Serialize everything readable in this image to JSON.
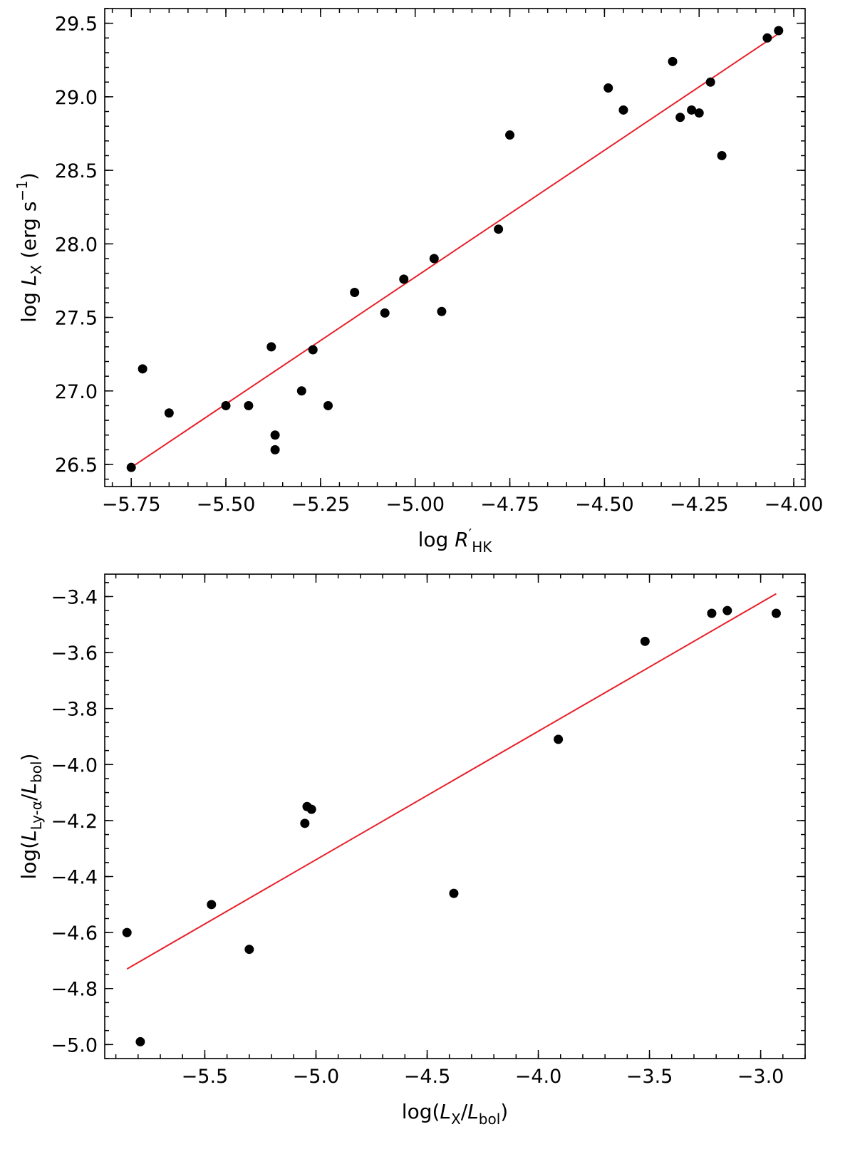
{
  "chart_data": [
    {
      "type": "scatter",
      "xlim": [
        -5.82,
        -3.97
      ],
      "ylim": [
        26.35,
        29.6
      ],
      "x_ticks": [
        -5.75,
        -5.5,
        -5.25,
        -5.0,
        -4.75,
        -4.5,
        -4.25,
        -4.0
      ],
      "x_tick_labels": [
        "−5.75",
        "−5.50",
        "−5.25",
        "−5.00",
        "−4.75",
        "−4.50",
        "−4.25",
        "−4.00"
      ],
      "y_ticks": [
        26.5,
        27.0,
        27.5,
        28.0,
        28.5,
        29.0,
        29.5
      ],
      "y_tick_labels": [
        "26.5",
        "27.0",
        "27.5",
        "28.0",
        "28.5",
        "29.0",
        "29.5"
      ],
      "x_minor_step": 0.05,
      "y_minor_step": 0.1,
      "xlabel": {
        "prefix": "log ",
        "italic": "R",
        "prime": "′",
        "sub": "HK"
      },
      "ylabel": {
        "prefix": "log ",
        "italic": "L",
        "sub": "X",
        "suffix": " (erg s",
        "sup": "−1",
        "close": ")"
      },
      "grid": false,
      "point_color": "#000000",
      "points": [
        {
          "x": -5.75,
          "y": 26.48
        },
        {
          "x": -5.72,
          "y": 27.15
        },
        {
          "x": -5.65,
          "y": 26.85
        },
        {
          "x": -5.5,
          "y": 26.9
        },
        {
          "x": -5.44,
          "y": 26.9
        },
        {
          "x": -5.38,
          "y": 27.3
        },
        {
          "x": -5.37,
          "y": 26.7
        },
        {
          "x": -5.37,
          "y": 26.6
        },
        {
          "x": -5.3,
          "y": 27.0
        },
        {
          "x": -5.27,
          "y": 27.28
        },
        {
          "x": -5.23,
          "y": 26.9
        },
        {
          "x": -5.16,
          "y": 27.67
        },
        {
          "x": -5.08,
          "y": 27.53
        },
        {
          "x": -5.03,
          "y": 27.76
        },
        {
          "x": -4.95,
          "y": 27.9
        },
        {
          "x": -4.93,
          "y": 27.54
        },
        {
          "x": -4.78,
          "y": 28.1
        },
        {
          "x": -4.75,
          "y": 28.74
        },
        {
          "x": -4.49,
          "y": 29.06
        },
        {
          "x": -4.45,
          "y": 28.91
        },
        {
          "x": -4.32,
          "y": 29.24
        },
        {
          "x": -4.3,
          "y": 28.86
        },
        {
          "x": -4.27,
          "y": 28.91
        },
        {
          "x": -4.25,
          "y": 28.89
        },
        {
          "x": -4.22,
          "y": 29.1
        },
        {
          "x": -4.19,
          "y": 28.6
        },
        {
          "x": -4.07,
          "y": 29.4
        },
        {
          "x": -4.04,
          "y": 29.45
        }
      ],
      "fit_line": {
        "color": "#e8202a",
        "x": [
          -5.75,
          -4.04
        ],
        "y": [
          26.48,
          29.43
        ]
      }
    },
    {
      "type": "scatter",
      "xlim": [
        -5.95,
        -2.8
      ],
      "ylim": [
        -5.05,
        -3.32
      ],
      "x_ticks": [
        -5.5,
        -5.0,
        -4.5,
        -4.0,
        -3.5,
        -3.0
      ],
      "x_tick_labels": [
        "−5.5",
        "−5.0",
        "−4.5",
        "−4.0",
        "−3.5",
        "−3.0"
      ],
      "y_ticks": [
        -5.0,
        -4.8,
        -4.6,
        -4.4,
        -4.2,
        -4.0,
        -3.8,
        -3.6,
        -3.4
      ],
      "y_tick_labels": [
        "−5.0",
        "−4.8",
        "−4.6",
        "−4.4",
        "−4.2",
        "−4.0",
        "−3.8",
        "−3.6",
        "−3.4"
      ],
      "x_minor_step": 0.1,
      "y_minor_step": 0.05,
      "xlabel": {
        "prefix": "log(",
        "italic": "L",
        "sub": "X",
        "slash": "/",
        "italic2": "L",
        "sub2": "bol",
        "close": ")"
      },
      "ylabel": {
        "prefix": "log(",
        "italic": "L",
        "sub": "Ly-α",
        "slash": "/",
        "italic2": "L",
        "sub2": "bol",
        "close": ")"
      },
      "grid": false,
      "point_color": "#000000",
      "points": [
        {
          "x": -5.85,
          "y": -4.6
        },
        {
          "x": -5.79,
          "y": -4.99
        },
        {
          "x": -5.47,
          "y": -4.5
        },
        {
          "x": -5.3,
          "y": -4.66
        },
        {
          "x": -5.05,
          "y": -4.21
        },
        {
          "x": -5.04,
          "y": -4.15
        },
        {
          "x": -5.02,
          "y": -4.16
        },
        {
          "x": -4.38,
          "y": -4.46
        },
        {
          "x": -3.91,
          "y": -3.91
        },
        {
          "x": -3.52,
          "y": -3.56
        },
        {
          "x": -3.22,
          "y": -3.46
        },
        {
          "x": -3.15,
          "y": -3.45
        },
        {
          "x": -2.93,
          "y": -3.46
        }
      ],
      "fit_line": {
        "color": "#e8202a",
        "x": [
          -5.85,
          -2.93
        ],
        "y": [
          -4.73,
          -3.39
        ]
      }
    }
  ]
}
